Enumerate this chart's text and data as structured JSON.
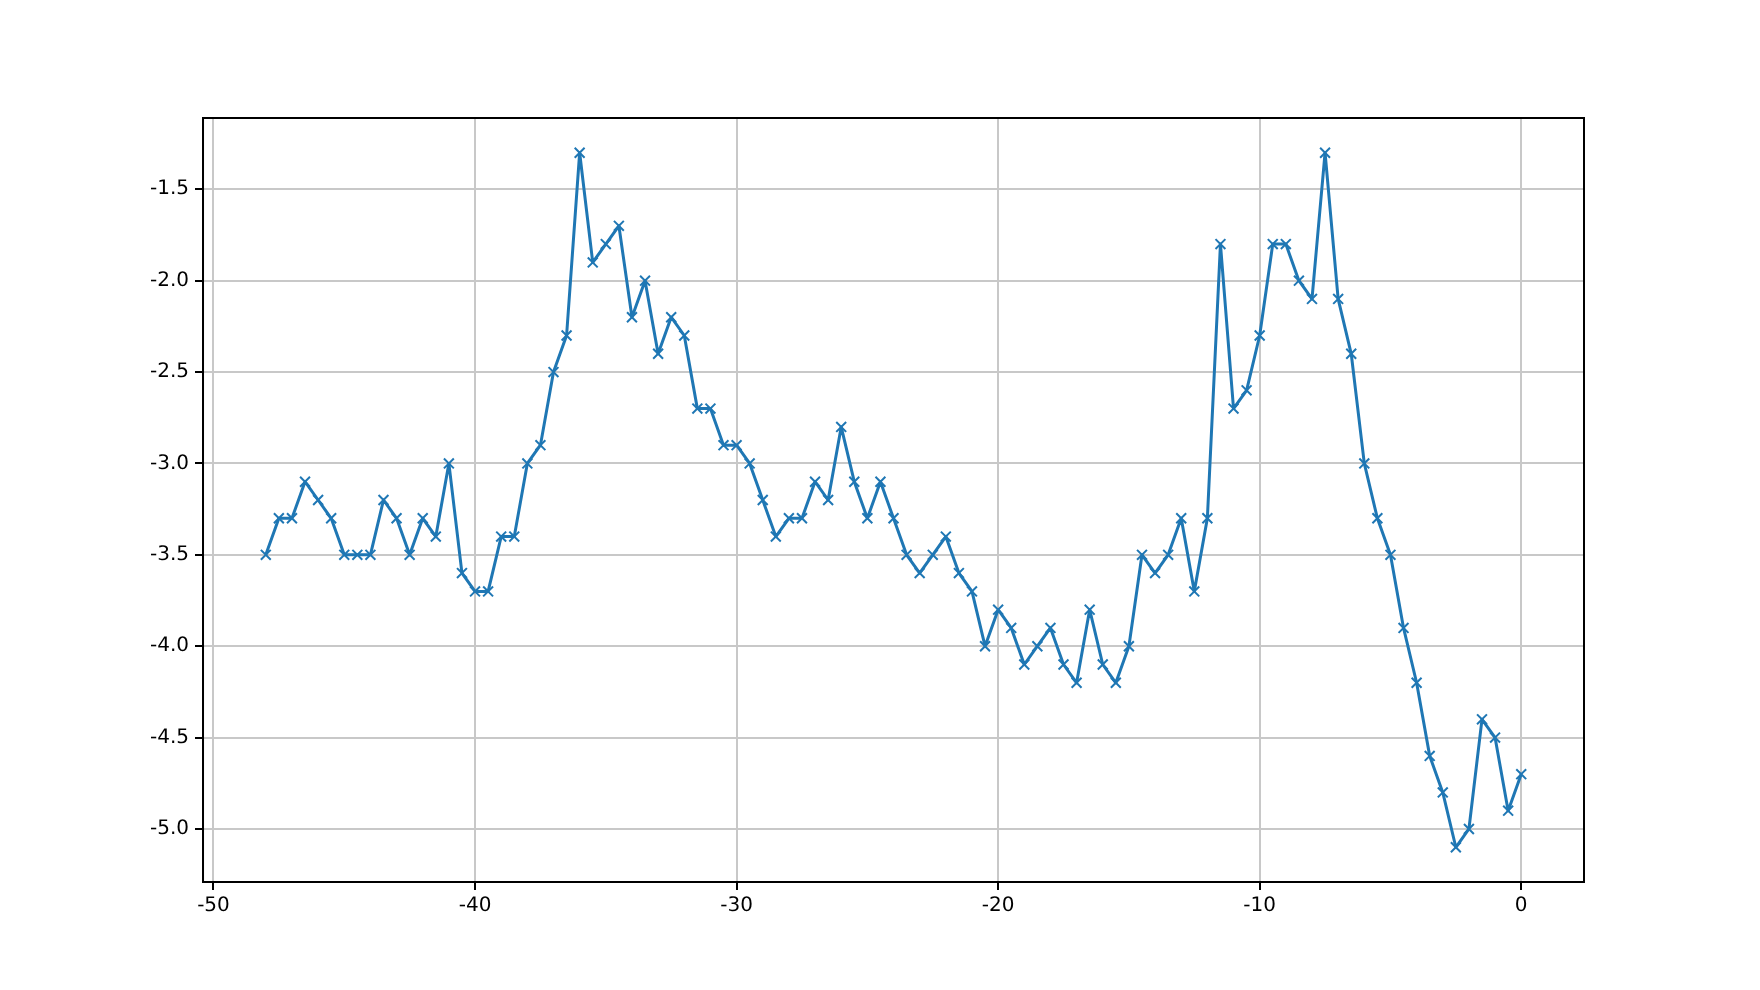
{
  "chart_data": {
    "type": "line",
    "color": "#1f77b4",
    "marker": "cross",
    "grid": true,
    "legend": false,
    "x": [
      -48,
      -47.5,
      -47,
      -46.5,
      -46,
      -45.5,
      -45,
      -44.5,
      -44,
      -43.5,
      -43,
      -42.5,
      -42,
      -41.5,
      -41,
      -40.5,
      -40,
      -39.5,
      -39,
      -38.5,
      -38,
      -37.5,
      -37,
      -36.5,
      -36,
      -35.5,
      -35,
      -34.5,
      -34,
      -33.5,
      -33,
      -32.5,
      -32,
      -31.5,
      -31,
      -30.5,
      -30,
      -29.5,
      -29,
      -28.5,
      -28,
      -27.5,
      -27,
      -26.5,
      -26,
      -25.5,
      -25,
      -24.5,
      -24,
      -23.5,
      -23,
      -22.5,
      -22,
      -21.5,
      -21,
      -20.5,
      -20,
      -19.5,
      -19,
      -18.5,
      -18,
      -17.5,
      -17,
      -16.5,
      -16,
      -15.5,
      -15,
      -14.5,
      -14,
      -13.5,
      -13,
      -12.5,
      -12,
      -11.5,
      -11,
      -10.5,
      -10,
      -9.5,
      -9,
      -8.5,
      -8,
      -7.5,
      -7,
      -6.5,
      -6,
      -5.5,
      -5,
      -4.5,
      -4,
      -3.5,
      -3,
      -2.5,
      -2,
      -1.5,
      -1,
      -0.5,
      0
    ],
    "values": [
      -3.5,
      -3.3,
      -3.3,
      -3.1,
      -3.2,
      -3.3,
      -3.5,
      -3.5,
      -3.5,
      -3.2,
      -3.3,
      -3.5,
      -3.3,
      -3.4,
      -3.0,
      -3.6,
      -3.7,
      -3.7,
      -3.4,
      -3.4,
      -3.0,
      -2.9,
      -2.5,
      -2.3,
      -1.3,
      -1.9,
      -1.8,
      -1.7,
      -2.2,
      -2.0,
      -2.4,
      -2.2,
      -2.3,
      -2.7,
      -2.7,
      -2.9,
      -2.9,
      -3.0,
      -3.2,
      -3.4,
      -3.3,
      -3.3,
      -3.1,
      -3.2,
      -2.8,
      -3.1,
      -3.3,
      -3.1,
      -3.3,
      -3.5,
      -3.6,
      -3.5,
      -3.4,
      -3.6,
      -3.7,
      -4.0,
      -3.8,
      -3.9,
      -4.1,
      -4.0,
      -3.9,
      -4.1,
      -4.2,
      -3.8,
      -4.1,
      -4.2,
      -4.0,
      -3.5,
      -3.6,
      -3.5,
      -3.3,
      -3.7,
      -3.3,
      -1.8,
      -2.7,
      -2.6,
      -2.3,
      -1.8,
      -1.8,
      -2.0,
      -2.1,
      -1.3,
      -2.1,
      -2.4,
      -3.0,
      -3.3,
      -3.5,
      -3.9,
      -4.2,
      -4.6,
      -4.8,
      -5.1,
      -5.0,
      -4.4,
      -4.5,
      -4.9,
      -4.7
    ],
    "xlim": [
      -50.4,
      2.4
    ],
    "xticks": [
      -50,
      -40,
      -30,
      -20,
      -10,
      0
    ],
    "ylim": [
      -5.29,
      -1.11
    ],
    "yticks": [
      {
        "value": -5,
        "label": "-5.0"
      },
      {
        "value": -4.5,
        "label": "-4.5"
      },
      {
        "value": -4,
        "label": "-4.0"
      },
      {
        "value": -3.5,
        "label": "-3.5"
      },
      {
        "value": -3,
        "label": "-3.0"
      },
      {
        "value": -2.5,
        "label": "-2.5"
      },
      {
        "value": -2,
        "label": "-2.0"
      },
      {
        "value": -1.5,
        "label": "-1.5"
      }
    ]
  }
}
